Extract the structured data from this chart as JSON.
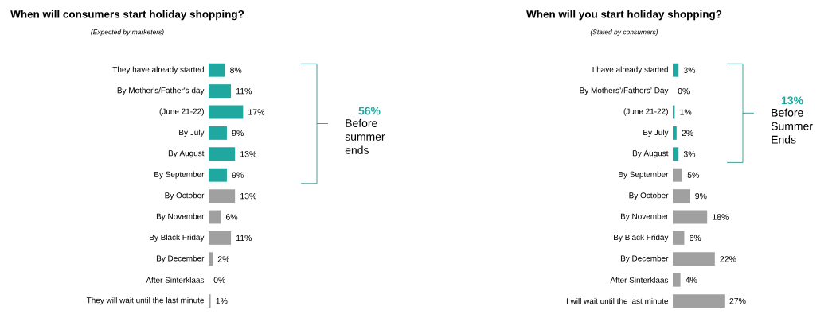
{
  "chart_data": [
    {
      "type": "bar",
      "orientation": "horizontal",
      "title": "When will consumers start holiday shopping?",
      "subtitle": "(Expected by marketers)",
      "categories": [
        "They have already started",
        "By Mother's/Father's day",
        "(June 21-22)",
        "By July",
        "By August",
        "By September",
        "By October",
        "By November",
        "By Black Friday",
        "By December",
        "After Sinterklaas",
        "They will wait until the last minute"
      ],
      "values": [
        8,
        11,
        17,
        9,
        13,
        9,
        13,
        6,
        11,
        2,
        0,
        1
      ],
      "value_labels": [
        "8%",
        "11%",
        "17%",
        "9%",
        "13%",
        "9%",
        "13%",
        "6%",
        "11%",
        "2%",
        "0%",
        "1%"
      ],
      "colors": [
        "#20a8a0",
        "#20a8a0",
        "#20a8a0",
        "#20a8a0",
        "#20a8a0",
        "#20a8a0",
        "#a0a0a0",
        "#a0a0a0",
        "#a0a0a0",
        "#a0a0a0",
        "#a0a0a0",
        "#a0a0a0"
      ],
      "annotations": [
        "56%",
        "Before summer ends"
      ]
    },
    {
      "type": "bar",
      "orientation": "horizontal",
      "title": "When will you start holiday shopping?",
      "subtitle": "(Stated by consumers)",
      "categories": [
        "I have already started",
        "By Mothers’/Fathers’ Day",
        "(June 21-22)",
        "By July",
        "By August",
        "By September",
        "By October",
        "By November",
        "By Black Friday",
        "By December",
        "After Sinterklaas",
        "I will wait until the last minute"
      ],
      "values": [
        3,
        0,
        1,
        2,
        3,
        5,
        9,
        18,
        6,
        22,
        4,
        27
      ],
      "value_labels": [
        "3%",
        "0%",
        "1%",
        "2%",
        "3%",
        "5%",
        "9%",
        "18%",
        "6%",
        "22%",
        "4%",
        "27%"
      ],
      "colors": [
        "#20a8a0",
        "#20a8a0",
        "#20a8a0",
        "#20a8a0",
        "#20a8a0",
        "#a0a0a0",
        "#a0a0a0",
        "#a0a0a0",
        "#a0a0a0",
        "#a0a0a0",
        "#a0a0a0",
        "#a0a0a0"
      ],
      "annotations": [
        "13%",
        "Before Summer Ends"
      ]
    }
  ]
}
